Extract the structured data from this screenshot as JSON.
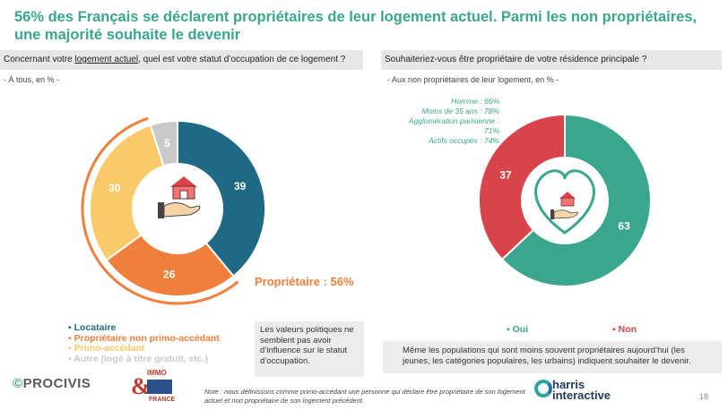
{
  "title": "56% des Français se déclarent propriétaires de leur logement actuel. Parmi les non propriétaires, une majorité souhaite le devenir",
  "left": {
    "question_pre": "Concernant votre",
    "question_ul": "logement actuel",
    "question_post": ", quel est votre statut d’occupation de ce logement ?",
    "base": "- À tous, en % -",
    "owner_label": "Propriétaire : 56%",
    "infobox": "Les valeurs politiques ne semblent pas avoir d’influence sur le statut d’occupation."
  },
  "right": {
    "question": "Souhaiteriez-vous être propriétaire de votre résidence principale ?",
    "base": "- Aux non propriétaires de leur logement, en % -",
    "notes": [
      "Homme : 66%",
      "Moins de 35 ans : 78%",
      "Agglomération parisienne : 71%",
      "Actifs occupés : 74%"
    ],
    "infobox": "Même les populations qui sont moins souvent propriétaires aujourd’hui (les jeunes, les catégories populaires, les urbains) indiquent souhaiter le devenir."
  },
  "footnote": "Note : nous définissons comme primo-accédant une personne qui déclare être propriétaire de son logement actuel et non propriétaire de son logement précédent.",
  "page_number": "18",
  "logos": {
    "procivis": "PROCIVIS",
    "immo_top": "IMMO",
    "immo_bottom": "FRANCE",
    "harris_line1": "harris",
    "harris_line2": "interactive"
  },
  "colors": {
    "teal": "#3aa68e",
    "navy": "#1e6a86",
    "orange": "#ef7f3a",
    "yellow": "#f9c96a",
    "grey": "#c9c9c9",
    "red": "#d9434a"
  },
  "icons": [
    "house-in-hand-icon",
    "heart-house-hand-icon"
  ],
  "chart_data": [
    {
      "type": "pie",
      "slices": [
        {
          "label": "Locataire",
          "value": 39,
          "color": "#1e6a86"
        },
        {
          "label": "Propriétaire non primo-accédant",
          "value": 26,
          "color": "#ef7f3a"
        },
        {
          "label": "Primo-accédant",
          "value": 30,
          "color": "#f9c96a"
        },
        {
          "label": "Autre (logé à titre gratuit, etc.)",
          "value": 5,
          "color": "#c9c9c9"
        }
      ]
    },
    {
      "type": "pie",
      "slices": [
        {
          "label": "Oui",
          "value": 63,
          "color": "#3aa68e"
        },
        {
          "label": "Non",
          "value": 37,
          "color": "#d9434a"
        }
      ]
    }
  ]
}
